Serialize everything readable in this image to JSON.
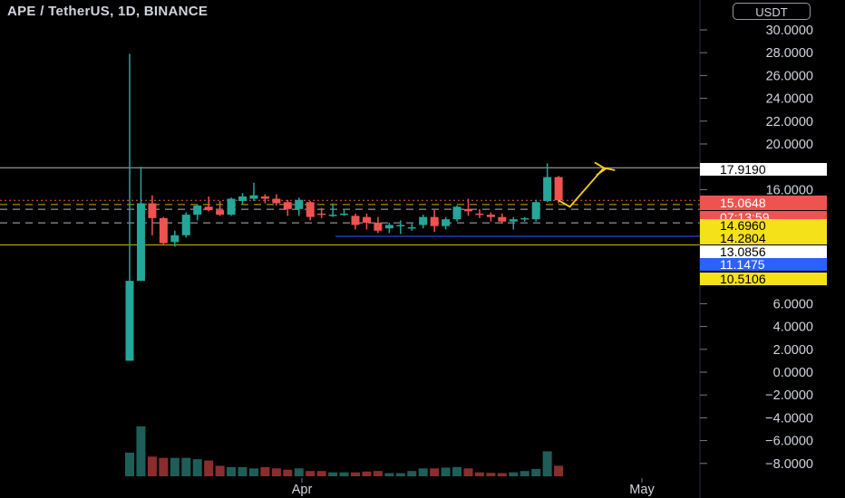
{
  "header": {
    "title": "APE / TetherUS, 1D, BINANCE",
    "currency_button": "USDT"
  },
  "colors": {
    "up": "#26a69a",
    "down": "#ef5350",
    "up_volume": "#1e5e58",
    "down_volume": "#8b2d2d",
    "resistance": "#b2b5be",
    "support": "#c8b400",
    "blue_line": "#2962ff",
    "projection": "#f5d313"
  },
  "price_tags": [
    {
      "label": "17.9190",
      "bg": "#ffffff",
      "fg": "#000000"
    },
    {
      "label": "15.0648",
      "bg": "#ef5350",
      "fg": "#ffffff"
    },
    {
      "label": "07:13:59",
      "bg": "#ef5350",
      "fg": "#ffffff"
    },
    {
      "label": "14.6960",
      "bg": "#f5e11a",
      "fg": "#000000"
    },
    {
      "label": "14.2804",
      "bg": "#f5e11a",
      "fg": "#000000"
    },
    {
      "label": "13.0856",
      "bg": "#ffffff",
      "fg": "#000000"
    },
    {
      "label": "11.1475",
      "bg": "#2962ff",
      "fg": "#ffffff"
    },
    {
      "label": "10.5106",
      "bg": "#f5e11a",
      "fg": "#000000"
    }
  ],
  "chart_data": {
    "type": "candlestick",
    "y_axis_ticks": [
      "30.0000",
      "28.0000",
      "26.0000",
      "24.0000",
      "22.0000",
      "20.0000",
      "16.0000",
      "6.0000",
      "4.0000",
      "2.0000",
      "0.0000",
      "−2.0000",
      "−4.0000",
      "−6.0000",
      "−8.0000"
    ],
    "y_axis_tick_values": [
      30,
      28,
      26,
      24,
      22,
      20,
      16,
      6,
      4,
      2,
      0,
      -2,
      -4,
      -6,
      -8
    ],
    "y_range": [
      -8.5,
      31.5
    ],
    "x_axis_labels": [
      "Apr",
      "May"
    ],
    "candles": [
      {
        "o": 1.0,
        "h": 27.9,
        "l": 1.0,
        "c": 8.0
      },
      {
        "o": 8.0,
        "h": 18.0,
        "l": 8.0,
        "c": 14.8
      },
      {
        "o": 14.8,
        "h": 15.5,
        "l": 12.0,
        "c": 13.5
      },
      {
        "o": 13.5,
        "h": 13.6,
        "l": 11.1,
        "c": 11.3
      },
      {
        "o": 11.4,
        "h": 12.4,
        "l": 11.0,
        "c": 12.0
      },
      {
        "o": 12.0,
        "h": 14.0,
        "l": 11.8,
        "c": 13.8
      },
      {
        "o": 13.8,
        "h": 14.7,
        "l": 13.3,
        "c": 14.6
      },
      {
        "o": 14.5,
        "h": 15.4,
        "l": 14.1,
        "c": 14.2
      },
      {
        "o": 14.2,
        "h": 15.0,
        "l": 13.7,
        "c": 13.8
      },
      {
        "o": 13.8,
        "h": 15.3,
        "l": 13.7,
        "c": 15.2
      },
      {
        "o": 15.0,
        "h": 15.7,
        "l": 14.7,
        "c": 15.4
      },
      {
        "o": 15.2,
        "h": 16.6,
        "l": 15.0,
        "c": 15.5
      },
      {
        "o": 15.4,
        "h": 15.6,
        "l": 14.8,
        "c": 15.2
      },
      {
        "o": 15.2,
        "h": 15.6,
        "l": 14.6,
        "c": 14.8
      },
      {
        "o": 14.9,
        "h": 15.1,
        "l": 13.7,
        "c": 14.3
      },
      {
        "o": 14.3,
        "h": 15.3,
        "l": 13.7,
        "c": 15.1
      },
      {
        "o": 14.9,
        "h": 15.0,
        "l": 13.3,
        "c": 13.6
      },
      {
        "o": 13.9,
        "h": 14.4,
        "l": 13.5,
        "c": 13.8
      },
      {
        "o": 13.8,
        "h": 14.8,
        "l": 13.6,
        "c": 13.8
      },
      {
        "o": 13.8,
        "h": 14.2,
        "l": 13.7,
        "c": 13.9
      },
      {
        "o": 13.7,
        "h": 13.9,
        "l": 12.5,
        "c": 12.9
      },
      {
        "o": 13.6,
        "h": 13.9,
        "l": 12.5,
        "c": 13.1
      },
      {
        "o": 13.1,
        "h": 13.6,
        "l": 12.2,
        "c": 12.4
      },
      {
        "o": 12.6,
        "h": 13.1,
        "l": 12.2,
        "c": 12.9
      },
      {
        "o": 12.8,
        "h": 13.3,
        "l": 12.1,
        "c": 12.9
      },
      {
        "o": 12.6,
        "h": 13.0,
        "l": 12.4,
        "c": 12.7
      },
      {
        "o": 12.9,
        "h": 13.8,
        "l": 12.6,
        "c": 13.6
      },
      {
        "o": 13.6,
        "h": 14.2,
        "l": 12.3,
        "c": 12.8
      },
      {
        "o": 12.8,
        "h": 13.6,
        "l": 12.5,
        "c": 13.4
      },
      {
        "o": 13.4,
        "h": 14.6,
        "l": 13.2,
        "c": 14.5
      },
      {
        "o": 14.3,
        "h": 15.2,
        "l": 13.7,
        "c": 14.1
      },
      {
        "o": 13.9,
        "h": 14.3,
        "l": 13.5,
        "c": 13.8
      },
      {
        "o": 13.8,
        "h": 14.0,
        "l": 13.2,
        "c": 13.6
      },
      {
        "o": 13.6,
        "h": 13.9,
        "l": 13.0,
        "c": 13.2
      },
      {
        "o": 13.2,
        "h": 13.6,
        "l": 12.5,
        "c": 13.4
      },
      {
        "o": 13.4,
        "h": 13.6,
        "l": 13.2,
        "c": 13.5
      },
      {
        "o": 13.4,
        "h": 15.1,
        "l": 13.2,
        "c": 14.9
      },
      {
        "o": 15.0,
        "h": 18.3,
        "l": 14.9,
        "c": 17.1
      },
      {
        "o": 17.1,
        "h": 17.2,
        "l": 14.8,
        "c": 15.06
      }
    ],
    "volumes": [
      9.0,
      19.0,
      7.5,
      7.0,
      7.0,
      7.0,
      6.5,
      6.0,
      4.0,
      3.5,
      3.5,
      3.0,
      3.5,
      3.0,
      2.5,
      3.0,
      2.0,
      2.0,
      1.5,
      1.5,
      1.5,
      1.8,
      2.0,
      1.2,
      1.2,
      2.0,
      3.0,
      3.0,
      3.3,
      3.5,
      3.0,
      1.5,
      1.3,
      1.2,
      1.5,
      2.0,
      2.8,
      9.5,
      4.0
    ],
    "horizontal_levels": [
      {
        "value": 17.919,
        "style": "solid",
        "color_key": "resistance"
      },
      {
        "value": 15.06,
        "style": "dotted",
        "color_key": "down"
      },
      {
        "value": 14.696,
        "style": "dashed",
        "color_key": "support"
      },
      {
        "value": 14.2804,
        "style": "dashed",
        "color_key": "resistance"
      },
      {
        "value": 13.0856,
        "style": "dashed",
        "color_key": "resistance"
      },
      {
        "value": 11.1475,
        "style": "solid",
        "color_key": "support"
      },
      {
        "value": 11.9,
        "style": "solid",
        "color_key": "blue_line"
      }
    ],
    "projection_path": [
      [
        38,
        15.06
      ],
      [
        39,
        14.5
      ],
      [
        42,
        17.9
      ],
      [
        43,
        17.7
      ]
    ]
  }
}
